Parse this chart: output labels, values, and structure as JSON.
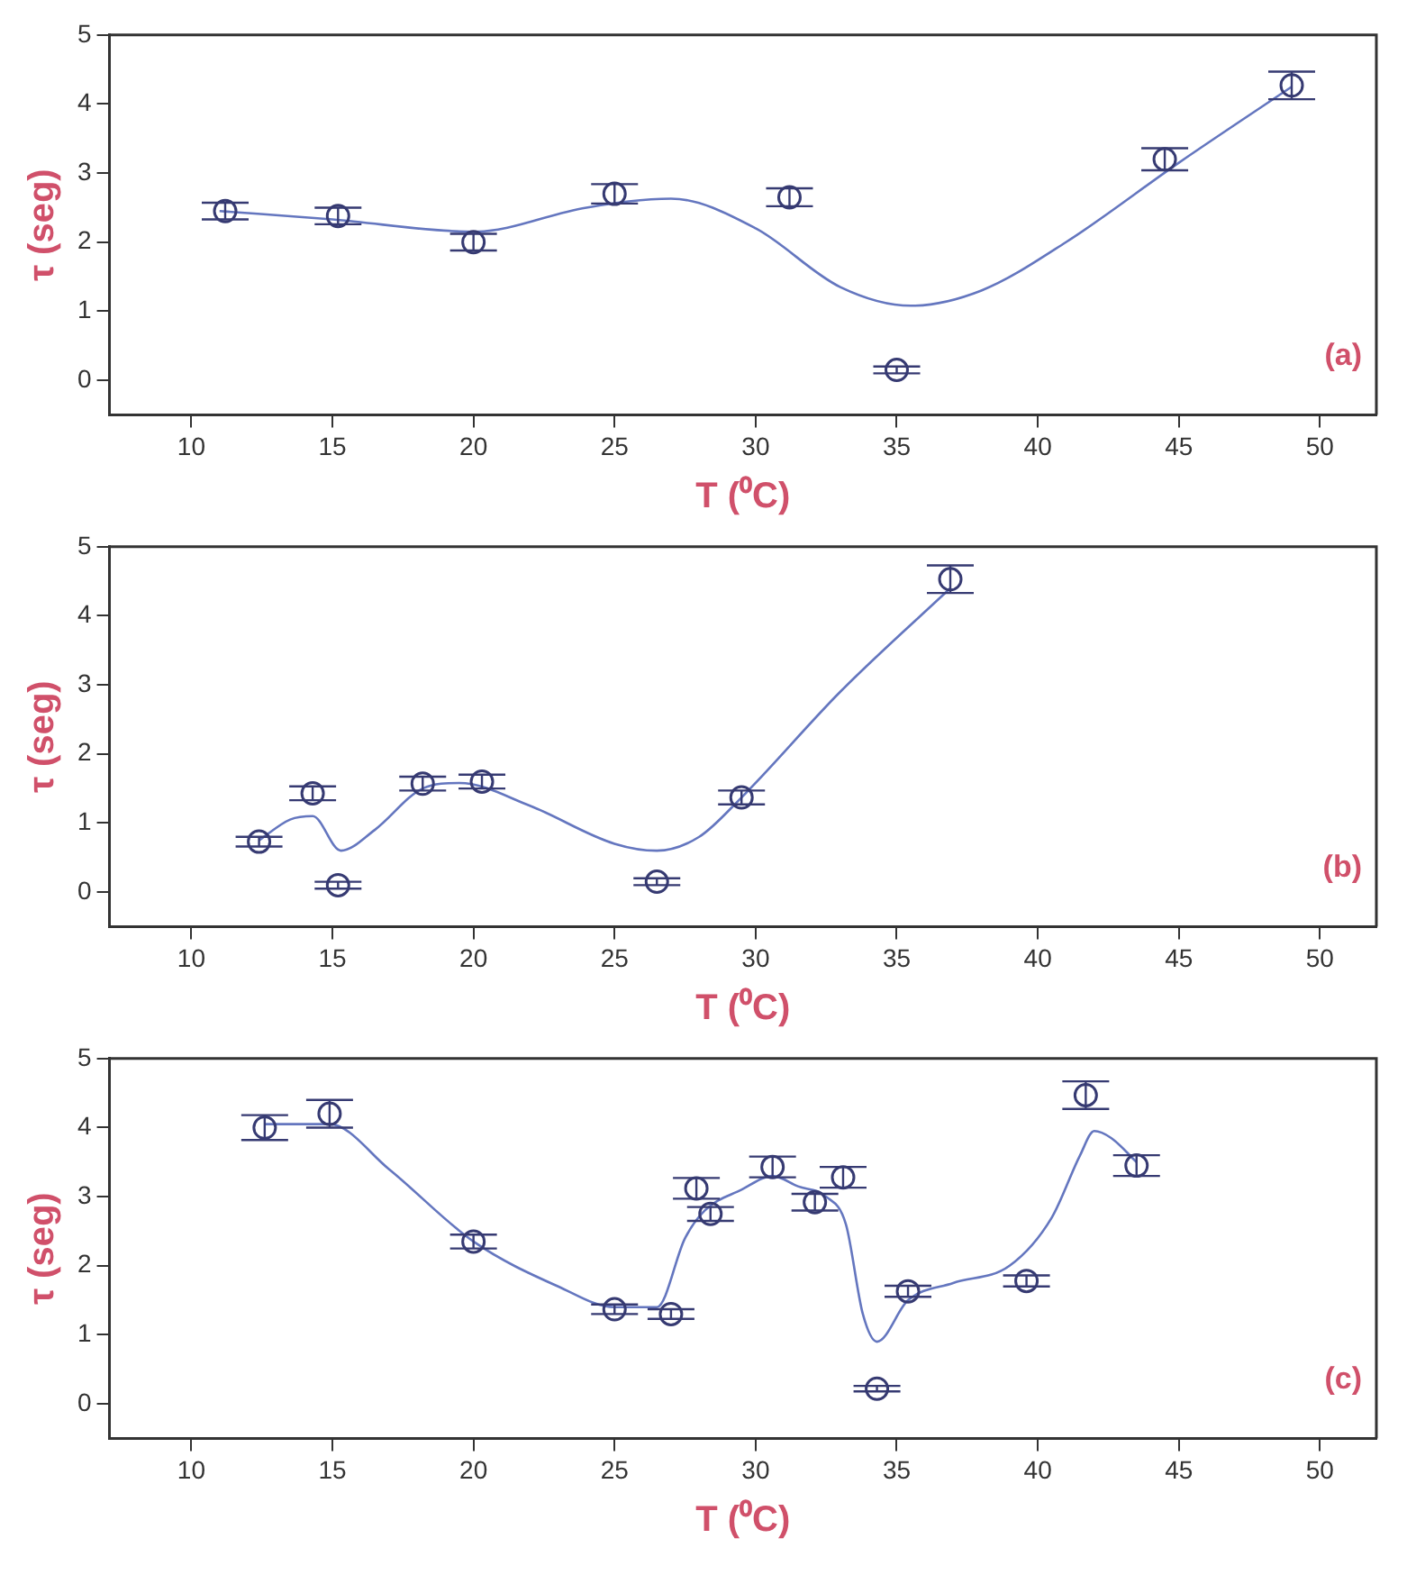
{
  "chart_data": [
    {
      "type": "scatter",
      "xlabel": "T (⁰C)",
      "ylabel": "τ (seg)",
      "xlim": [
        7.1,
        52
      ],
      "ylim": [
        -0.5,
        5
      ],
      "xticks": [
        10,
        15,
        20,
        25,
        30,
        35,
        40,
        45,
        50
      ],
      "yticks": [
        0,
        1,
        2,
        3,
        4,
        5
      ],
      "grid": false,
      "legend": false,
      "marker": "circle",
      "annotations": [
        "(a)"
      ],
      "series": [
        {
          "color": "#363a72",
          "x": [
            11.2,
            15.2,
            20,
            25,
            31.2,
            35,
            44.5,
            49
          ],
          "values": [
            2.45,
            2.38,
            2.0,
            2.7,
            2.65,
            0.15,
            3.2,
            4.27
          ],
          "errors": [
            0.12,
            0.12,
            0.12,
            0.14,
            0.13,
            0.05,
            0.16,
            0.2
          ]
        },
        {
          "type": "line",
          "marker": "none",
          "color": "#6476bf",
          "x": [
            11,
            15,
            20,
            24,
            27,
            30,
            33,
            35.5,
            38,
            41,
            45,
            49
          ],
          "values": [
            2.45,
            2.33,
            2.15,
            2.5,
            2.63,
            2.2,
            1.35,
            1.08,
            1.3,
            2.0,
            3.15,
            4.25
          ]
        }
      ]
    },
    {
      "type": "scatter",
      "xlabel": "T (⁰C)",
      "ylabel": "τ (seg)",
      "xlim": [
        7.1,
        52
      ],
      "ylim": [
        -0.5,
        5
      ],
      "xticks": [
        10,
        15,
        20,
        25,
        30,
        35,
        40,
        45,
        50
      ],
      "yticks": [
        0,
        1,
        2,
        3,
        4,
        5
      ],
      "grid": false,
      "legend": false,
      "marker": "circle",
      "annotations": [
        "(b)"
      ],
      "series": [
        {
          "color": "#363a72",
          "x": [
            12.4,
            14.3,
            15.2,
            18.2,
            20.3,
            26.5,
            29.5,
            36.9
          ],
          "values": [
            0.73,
            1.43,
            0.1,
            1.57,
            1.6,
            0.15,
            1.37,
            4.53
          ],
          "errors": [
            0.07,
            0.1,
            0.05,
            0.1,
            0.1,
            0.05,
            0.1,
            0.2
          ]
        },
        {
          "type": "line",
          "marker": "none",
          "color": "#6476bf",
          "x": [
            12.4,
            13.5,
            14.3,
            15.3,
            16.5,
            18.2,
            19.5,
            22,
            25,
            26.5,
            28,
            29.5,
            33,
            36.9
          ],
          "values": [
            0.75,
            1.05,
            1.1,
            0.6,
            0.9,
            1.5,
            1.58,
            1.25,
            0.7,
            0.6,
            0.8,
            1.37,
            2.9,
            4.4
          ]
        }
      ]
    },
    {
      "type": "scatter",
      "xlabel": "T (⁰C)",
      "ylabel": "τ (seg)",
      "xlim": [
        7.1,
        52
      ],
      "ylim": [
        -0.5,
        5
      ],
      "xticks": [
        10,
        15,
        20,
        25,
        30,
        35,
        40,
        45,
        50
      ],
      "yticks": [
        0,
        1,
        2,
        3,
        4,
        5
      ],
      "grid": false,
      "legend": false,
      "marker": "circle",
      "annotations": [
        "(c)"
      ],
      "series": [
        {
          "color": "#363a72",
          "x": [
            12.6,
            14.9,
            20,
            25,
            27,
            27.9,
            28.4,
            30.6,
            32.1,
            33.1,
            34.3,
            35.4,
            39.6,
            41.7,
            43.5
          ],
          "values": [
            4.0,
            4.2,
            2.35,
            1.37,
            1.3,
            3.12,
            2.75,
            3.43,
            2.92,
            3.28,
            0.22,
            1.63,
            1.78,
            4.47,
            3.45
          ],
          "errors": [
            0.18,
            0.2,
            0.1,
            0.07,
            0.07,
            0.15,
            0.1,
            0.15,
            0.12,
            0.15,
            0.04,
            0.08,
            0.08,
            0.2,
            0.15
          ]
        },
        {
          "type": "line",
          "marker": "none",
          "color": "#6476bf",
          "x": [
            12.6,
            14.9,
            17,
            20,
            23,
            25,
            26.5,
            27.5,
            28.2,
            29.5,
            30.6,
            31.5,
            32.5,
            33.2,
            33.8,
            34.3,
            35.4,
            37,
            39,
            40.5,
            41.5,
            42,
            42.6,
            43.5
          ],
          "values": [
            4.05,
            4.05,
            3.4,
            2.35,
            1.7,
            1.4,
            1.4,
            2.4,
            2.8,
            3.1,
            3.3,
            3.15,
            3.0,
            2.6,
            1.3,
            0.9,
            1.5,
            1.75,
            2.0,
            2.7,
            3.6,
            3.95,
            3.85,
            3.5
          ]
        }
      ]
    }
  ]
}
